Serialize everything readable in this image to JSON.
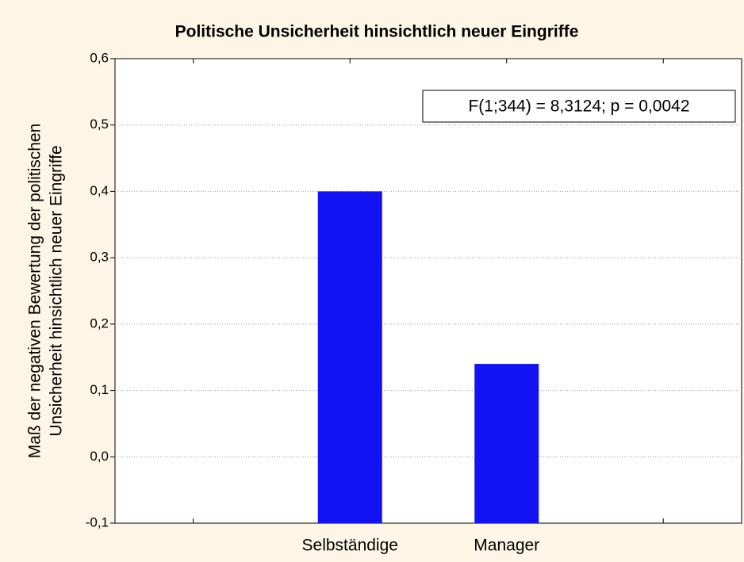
{
  "chart_data": {
    "type": "bar",
    "title": "Politische Unsicherheit hinsichtlich neuer Eingriffe",
    "ylabel": [
      "Maß der negativen Bewertung der politischen",
      "Unsicherheit hinsichtlich neuer Eingriffe"
    ],
    "annotation": "F(1;344) = 8,3124; p = 0,0042",
    "categories": [
      null,
      "Selbständige",
      "Manager",
      null
    ],
    "values": [
      null,
      0.4,
      0.14,
      null
    ],
    "color": "#1212f2",
    "ylim": [
      -0.1,
      0.6
    ],
    "yticks": [
      {
        "value": -0.1,
        "label": "-0,1"
      },
      {
        "value": 0.0,
        "label": "0,0"
      },
      {
        "value": 0.1,
        "label": "0,1"
      },
      {
        "value": 0.2,
        "label": "0,2"
      },
      {
        "value": 0.3,
        "label": "0,3"
      },
      {
        "value": 0.4,
        "label": "0,4"
      },
      {
        "value": 0.5,
        "label": "0,5"
      },
      {
        "value": 0.6,
        "label": "0,6"
      }
    ],
    "grid": true
  }
}
